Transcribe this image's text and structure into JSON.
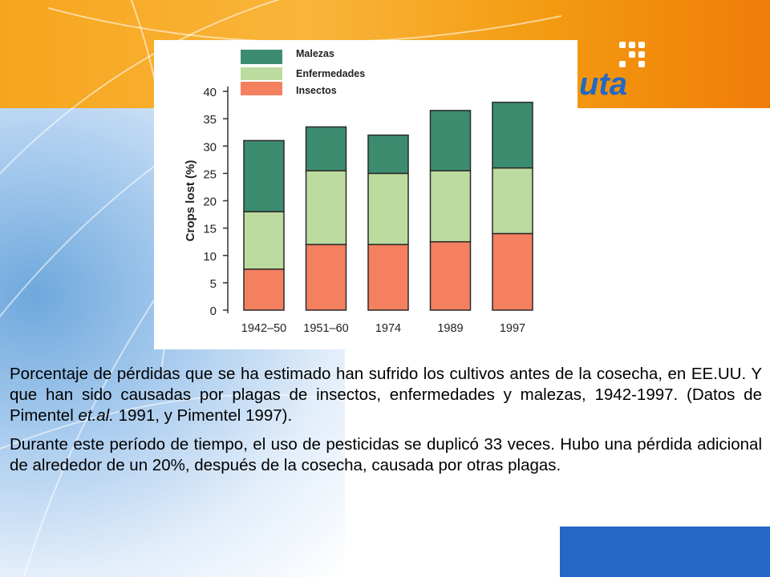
{
  "slide": {
    "logo_text": "uta",
    "colors": {
      "orange": "#f6a51e",
      "blue": "#2368c4",
      "malezas": "#3c8c70",
      "enfermedades": "#bcdb9e",
      "insectos": "#f48060"
    }
  },
  "caption": {
    "p1_a": "Porcentaje de pérdidas que se ha estimado han sufrido los cultivos antes de la cosecha, en EE.UU. Y que han sido causadas por plagas de insectos, enfermedades y malezas, 1942-1997. (Datos de Pimentel ",
    "p1_italic": "et.al.",
    "p1_b": " 1991, y Pimentel 1997).",
    "p2": "Durante este período de tiempo, el uso de pesticidas se duplicó 33 veces. Hubo una pérdida adicional de alrededor de un 20%, después de la cosecha, causada por otras plagas."
  },
  "chart_data": {
    "type": "bar",
    "stacked": true,
    "title": "",
    "xlabel": "",
    "ylabel": "Crops lost (%)",
    "ylim": [
      0,
      40
    ],
    "yticks": [
      0,
      5,
      10,
      15,
      20,
      25,
      30,
      35,
      40
    ],
    "categories": [
      "1942–50",
      "1951–60",
      "1974",
      "1989",
      "1997"
    ],
    "series": [
      {
        "name": "Insectos",
        "color": "#f48060",
        "values": [
          7.5,
          12,
          12,
          12.5,
          14
        ]
      },
      {
        "name": "Enfermedades",
        "color": "#bcdb9e",
        "values": [
          10.5,
          13.5,
          13,
          13,
          12
        ]
      },
      {
        "name": "Malezas",
        "color": "#3c8c70",
        "values": [
          13,
          8,
          7,
          11,
          12
        ]
      }
    ],
    "legend": {
      "placement": "top",
      "order": [
        "Malezas",
        "Enfermedades",
        "Insectos"
      ]
    }
  }
}
